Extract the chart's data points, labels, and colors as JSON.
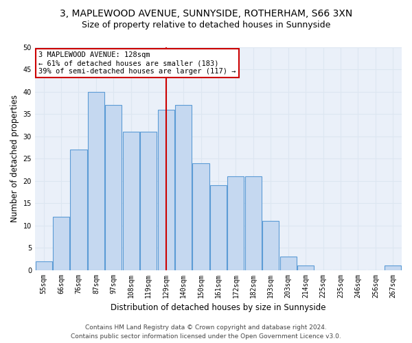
{
  "title1": "3, MAPLEWOOD AVENUE, SUNNYSIDE, ROTHERHAM, S66 3XN",
  "title2": "Size of property relative to detached houses in Sunnyside",
  "xlabel": "Distribution of detached houses by size in Sunnyside",
  "ylabel": "Number of detached properties",
  "bin_labels": [
    "55sqm",
    "66sqm",
    "76sqm",
    "87sqm",
    "97sqm",
    "108sqm",
    "119sqm",
    "129sqm",
    "140sqm",
    "150sqm",
    "161sqm",
    "172sqm",
    "182sqm",
    "193sqm",
    "203sqm",
    "214sqm",
    "225sqm",
    "235sqm",
    "246sqm",
    "256sqm",
    "267sqm"
  ],
  "values": [
    2,
    12,
    27,
    40,
    37,
    31,
    31,
    36,
    37,
    24,
    19,
    21,
    21,
    11,
    3,
    1,
    0,
    0,
    0,
    0,
    1
  ],
  "bar_color": "#c5d8f0",
  "bar_edge_color": "#5b9bd5",
  "vline_x_index": 7,
  "vline_color": "#cc0000",
  "annotation_title": "3 MAPLEWOOD AVENUE: 128sqm",
  "annotation_line1": "← 61% of detached houses are smaller (183)",
  "annotation_line2": "39% of semi-detached houses are larger (117) →",
  "annotation_box_color": "#ffffff",
  "annotation_box_edge": "#cc0000",
  "grid_color": "#dce6f1",
  "background_color": "#eaf0f9",
  "ylim": [
    0,
    50
  ],
  "yticks": [
    0,
    5,
    10,
    15,
    20,
    25,
    30,
    35,
    40,
    45,
    50
  ],
  "footer1": "Contains HM Land Registry data © Crown copyright and database right 2024.",
  "footer2": "Contains public sector information licensed under the Open Government Licence v3.0.",
  "title1_fontsize": 10,
  "title2_fontsize": 9,
  "axis_label_fontsize": 8.5,
  "tick_fontsize": 7,
  "footer_fontsize": 6.5,
  "annotation_fontsize": 7.5
}
